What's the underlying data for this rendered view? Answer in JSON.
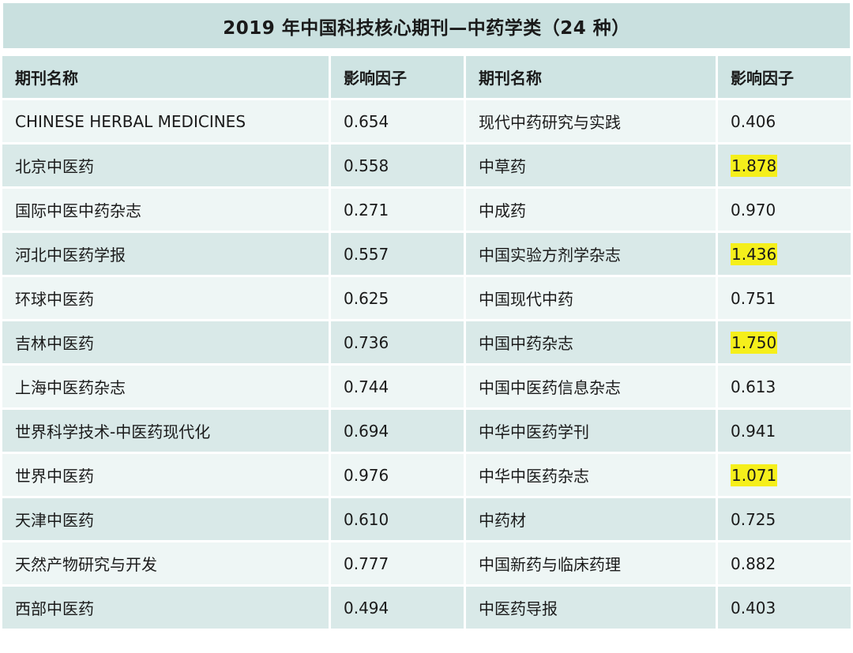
{
  "title": "2019 年中国科技核心期刊—中药学类（24 种）",
  "headers": {
    "name_left": "期刊名称",
    "if_left": "影响因子",
    "name_right": "期刊名称",
    "if_right": "影响因子"
  },
  "highlight_color": "#f5ef1b",
  "rows": [
    {
      "left_name": "CHINESE HERBAL MEDICINES",
      "left_if": "0.654",
      "right_name": "现代中药研究与实践",
      "right_if": "0.406",
      "right_highlight": false
    },
    {
      "left_name": "北京中医药",
      "left_if": "0.558",
      "right_name": "中草药",
      "right_if": "1.878",
      "right_highlight": true
    },
    {
      "left_name": "国际中医中药杂志",
      "left_if": "0.271",
      "right_name": "中成药",
      "right_if": "0.970",
      "right_highlight": false
    },
    {
      "left_name": "河北中医药学报",
      "left_if": "0.557",
      "right_name": "中国实验方剂学杂志",
      "right_if": "1.436",
      "right_highlight": true
    },
    {
      "left_name": "环球中医药",
      "left_if": "0.625",
      "right_name": "中国现代中药",
      "right_if": "0.751",
      "right_highlight": false
    },
    {
      "left_name": "吉林中医药",
      "left_if": "0.736",
      "right_name": "中国中药杂志",
      "right_if": "1.750",
      "right_highlight": true
    },
    {
      "left_name": "上海中医药杂志",
      "left_if": "0.744",
      "right_name": "中国中医药信息杂志",
      "right_if": "0.613",
      "right_highlight": false
    },
    {
      "left_name": "世界科学技术-中医药现代化",
      "left_if": "0.694",
      "right_name": "中华中医药学刊",
      "right_if": "0.941",
      "right_highlight": false
    },
    {
      "left_name": "世界中医药",
      "left_if": "0.976",
      "right_name": "中华中医药杂志",
      "right_if": "1.071",
      "right_highlight": true
    },
    {
      "left_name": "天津中医药",
      "left_if": "0.610",
      "right_name": "中药材",
      "right_if": "0.725",
      "right_highlight": false
    },
    {
      "left_name": "天然产物研究与开发",
      "left_if": "0.777",
      "right_name": "中国新药与临床药理",
      "right_if": "0.882",
      "right_highlight": false
    },
    {
      "left_name": "西部中医药",
      "left_if": "0.494",
      "right_name": "中医药导报",
      "right_if": "0.403",
      "right_highlight": false
    }
  ]
}
